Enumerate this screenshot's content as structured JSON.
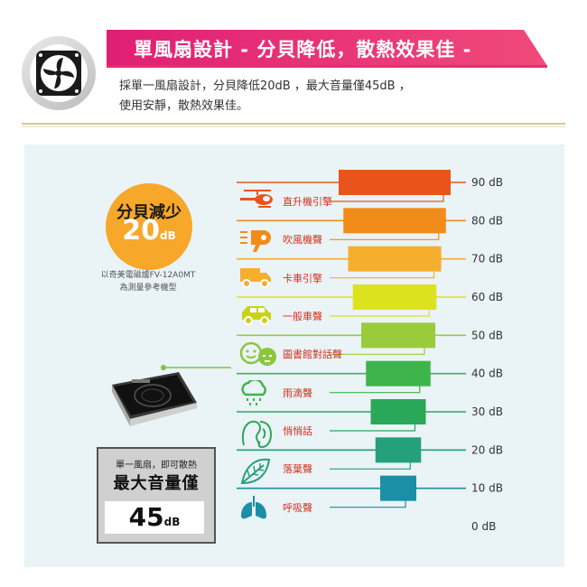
{
  "header": {
    "title": "單風扇設計 - 分貝降低，散熱效果佳 -",
    "desc_line1": "採單一風扇設計，分貝降低20dB ，最大音量僅45dB ，",
    "desc_line2": "使用安靜，散熱效果佳。",
    "accent_color": "#e62e72",
    "icon": "fan-icon"
  },
  "reduction": {
    "label": "分貝減少",
    "value": "20",
    "unit": "dB",
    "ref_line1": "以奇美電磁爐FV-12A0MT",
    "ref_line2": "為測量參考機型"
  },
  "product_note": {
    "line1": "單一風扇，即可散熱",
    "line2": "最大音量僅",
    "value": "45",
    "unit": "dB"
  },
  "chart_data": {
    "type": "bar",
    "title": "",
    "axis_ticks": [
      "90 dB",
      "80 dB",
      "70 dB",
      "60 dB",
      "50 dB",
      "40 dB",
      "30 dB",
      "20 dB",
      "10 dB",
      "0 dB"
    ],
    "tick_values": [
      90,
      80,
      70,
      60,
      50,
      40,
      30,
      20,
      10,
      0
    ],
    "ylim": [
      0,
      90
    ],
    "sources": [
      {
        "label": "直升機引擎",
        "icon": "helicopter-icon",
        "level": 90,
        "color": "#e8541c"
      },
      {
        "label": "吹風機聲",
        "icon": "hair-dryer-icon",
        "level": 80,
        "color": "#f18c1a"
      },
      {
        "label": "卡車引擎",
        "icon": "truck-icon",
        "level": 70,
        "color": "#f6ae2d"
      },
      {
        "label": "一般車聲",
        "icon": "car-icon",
        "level": 60,
        "color": "#dde21f"
      },
      {
        "label": "圖書館對話聲",
        "icon": "chat-icon",
        "level": 50,
        "color": "#9acb3c"
      },
      {
        "label": "雨滴聲",
        "icon": "rain-cloud-icon",
        "level": 40,
        "color": "#3db54a"
      },
      {
        "label": "悄悄話",
        "icon": "whisper-icon",
        "level": 30,
        "color": "#2aa85a"
      },
      {
        "label": "落葉聲",
        "icon": "leaf-icon",
        "level": 20,
        "color": "#24a07a"
      },
      {
        "label": "呼吸聲",
        "icon": "lungs-icon",
        "level": 10,
        "color": "#1b8fa6"
      }
    ]
  }
}
